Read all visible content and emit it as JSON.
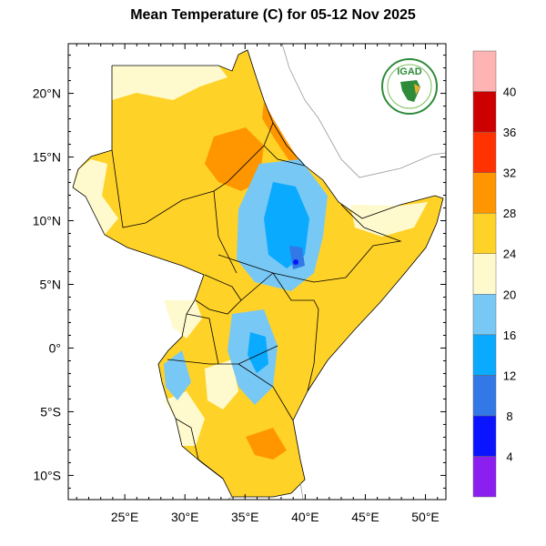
{
  "title": "Mean Temperature (C) for 05-12 Nov 2025",
  "logo": {
    "text": "IGAD",
    "color": "#2e8b3a"
  },
  "map": {
    "lon_range": [
      20.3,
      51.7
    ],
    "lat_range": [
      -11.9,
      23.9
    ],
    "lon_ticks": [
      {
        "value": 25,
        "label": "25°E"
      },
      {
        "value": 30,
        "label": "30°E"
      },
      {
        "value": 35,
        "label": "35°E"
      },
      {
        "value": 40,
        "label": "40°E"
      },
      {
        "value": 45,
        "label": "45°E"
      },
      {
        "value": 50,
        "label": "50°E"
      }
    ],
    "lat_ticks": [
      {
        "value": 20,
        "label": "20°N"
      },
      {
        "value": 15,
        "label": "15°N"
      },
      {
        "value": 10,
        "label": "10°N"
      },
      {
        "value": 5,
        "label": "5°N"
      },
      {
        "value": 0,
        "label": "0°"
      },
      {
        "value": -5,
        "label": "5°S"
      },
      {
        "value": -10,
        "label": "10°S"
      }
    ]
  },
  "colorbar": {
    "labels": [
      "4",
      "8",
      "12",
      "16",
      "20",
      "24",
      "28",
      "32",
      "36",
      "40"
    ],
    "colors": [
      "#8a1ff0",
      "#0a14ff",
      "#3278e6",
      "#0aaaff",
      "#78c8f5",
      "#fffacd",
      "#ffd228",
      "#ff9600",
      "#ff3200",
      "#cd0000",
      "#ffb4b4"
    ]
  }
}
